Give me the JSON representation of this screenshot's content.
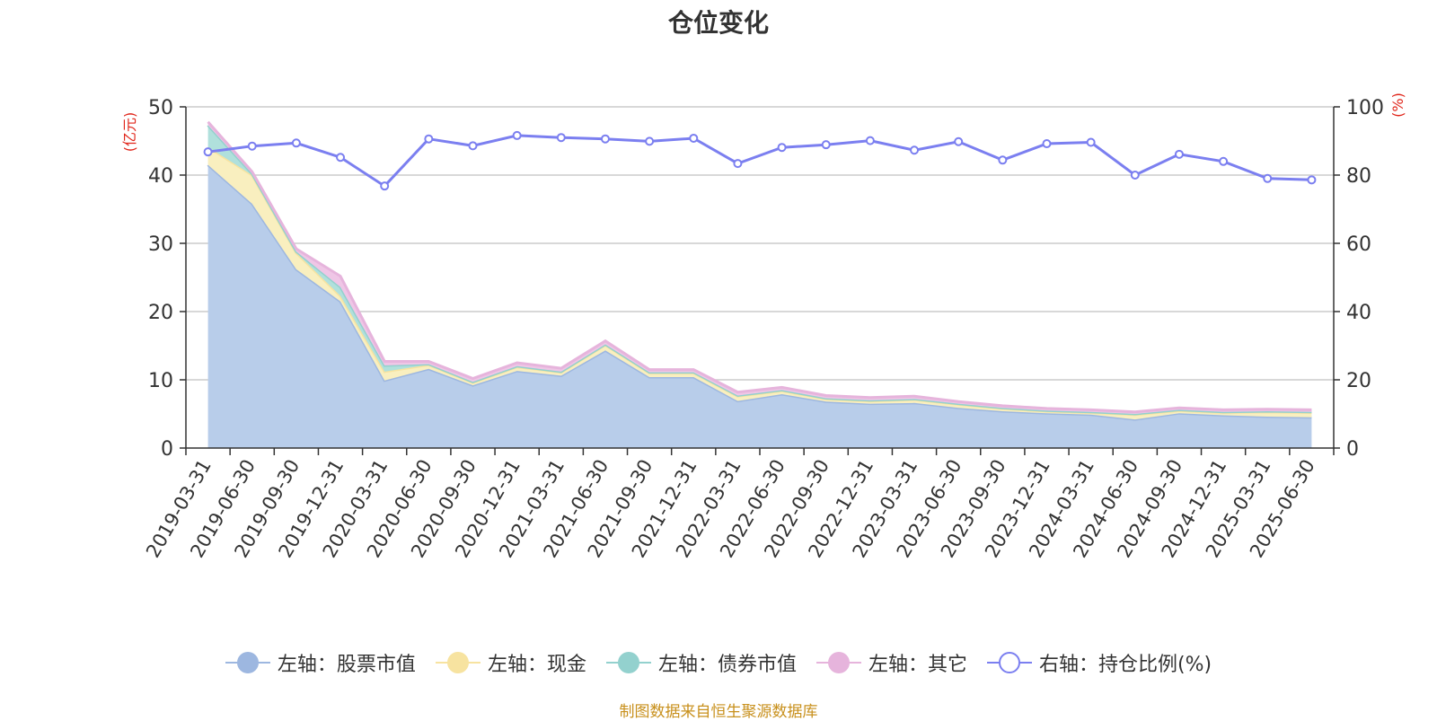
{
  "chart_data": {
    "type": "area",
    "title": "仓位变化",
    "categories": [
      "2019-03-31",
      "2019-06-30",
      "2019-09-30",
      "2019-12-31",
      "2020-03-31",
      "2020-06-30",
      "2020-09-30",
      "2020-12-31",
      "2021-03-31",
      "2021-06-30",
      "2021-09-30",
      "2021-12-31",
      "2022-03-31",
      "2022-06-30",
      "2022-09-30",
      "2022-12-31",
      "2023-03-31",
      "2023-06-30",
      "2023-09-30",
      "2023-12-31",
      "2024-03-31",
      "2024-06-30",
      "2024-09-30",
      "2024-12-31",
      "2025-03-31",
      "2025-06-30"
    ],
    "left_axis": {
      "label": "(亿元)",
      "ylim": [
        0,
        50
      ],
      "ticks": [
        "0",
        "10",
        "20",
        "30",
        "40",
        "50"
      ]
    },
    "right_axis": {
      "label": "(%)",
      "ylim": [
        0,
        100
      ],
      "ticks": [
        "0",
        "20",
        "40",
        "60",
        "80",
        "100"
      ]
    },
    "series": [
      {
        "name": "左轴：股票市值",
        "axis": "left",
        "stacked": true,
        "color": "#9db7e0",
        "fill": "#b8cdea",
        "values": [
          41.5,
          35.8,
          26.2,
          21.5,
          9.9,
          11.6,
          9.2,
          11.3,
          10.6,
          14.3,
          10.4,
          10.4,
          6.9,
          7.9,
          6.8,
          6.5,
          6.6,
          5.9,
          5.4,
          5.1,
          4.9,
          4.2,
          5.1,
          4.8,
          4.6,
          4.5
        ]
      },
      {
        "name": "左轴：现金",
        "axis": "left",
        "stacked": true,
        "color": "#f7e3a0",
        "fill": "#f9efbf",
        "values": [
          2.6,
          4.2,
          2.4,
          0.8,
          1.3,
          0.6,
          0.4,
          0.6,
          0.5,
          0.8,
          0.6,
          0.6,
          0.7,
          0.5,
          0.4,
          0.4,
          0.5,
          0.5,
          0.4,
          0.3,
          0.3,
          0.7,
          0.4,
          0.4,
          0.7,
          0.7
        ]
      },
      {
        "name": "左轴：债券市值",
        "axis": "left",
        "stacked": true,
        "color": "#93d1ce",
        "fill": "#b0e0dc",
        "values": [
          3.2,
          0.2,
          0.2,
          1.3,
          0.9,
          0.1,
          0.1,
          0.1,
          0.1,
          0.1,
          0.1,
          0.1,
          0.1,
          0.1,
          0.1,
          0.1,
          0.1,
          0.1,
          0.1,
          0.1,
          0.1,
          0.1,
          0.1,
          0.1,
          0.1,
          0.1
        ]
      },
      {
        "name": "左轴：其它",
        "axis": "left",
        "stacked": true,
        "color": "#e6b4dc",
        "fill": "#efc6e6",
        "values": [
          0.5,
          0.3,
          0.4,
          1.6,
          0.6,
          0.4,
          0.5,
          0.5,
          0.5,
          0.5,
          0.4,
          0.4,
          0.5,
          0.4,
          0.4,
          0.4,
          0.4,
          0.3,
          0.3,
          0.3,
          0.3,
          0.3,
          0.3,
          0.3,
          0.3,
          0.3
        ]
      },
      {
        "name": "右轴：持仓比例(%)",
        "axis": "right",
        "type": "line",
        "color": "#7b7ff0",
        "values": [
          86.8,
          88.5,
          89.4,
          85.2,
          76.8,
          90.6,
          88.6,
          91.6,
          91.0,
          90.6,
          89.9,
          90.8,
          83.4,
          88.1,
          88.9,
          90.1,
          87.3,
          89.8,
          84.4,
          89.2,
          89.6,
          80.0,
          86.1,
          84.0,
          79.0,
          78.6
        ]
      }
    ],
    "grid": true,
    "legend_position": "bottom"
  },
  "footer": {
    "source": "制图数据来自恒生聚源数据库"
  }
}
